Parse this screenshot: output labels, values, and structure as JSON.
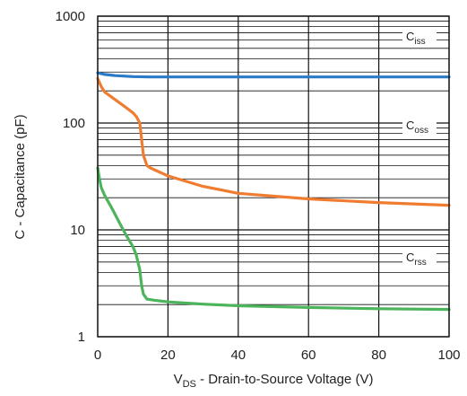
{
  "chart_data": {
    "type": "line",
    "xlabel": {
      "main": "V",
      "sub": "DS",
      "rest": " - Drain-to-Source Voltage (V)"
    },
    "ylabel": "C - Capacitance (pF)",
    "xlim": [
      0,
      100
    ],
    "ylim": [
      1,
      1000
    ],
    "yscale": "log",
    "grid": true,
    "x_ticks": [
      "0",
      "20",
      "40",
      "60",
      "80",
      "100"
    ],
    "y_ticks": [
      "1",
      "10",
      "100",
      "1000"
    ],
    "series": [
      {
        "name": "Ciss",
        "label_main": "C",
        "label_sub": "iss",
        "color": "#2a7ac8",
        "x": [
          0,
          2,
          5,
          10,
          15,
          20,
          40,
          60,
          80,
          100
        ],
        "y": [
          295,
          285,
          278,
          272,
          270,
          270,
          270,
          270,
          270,
          270
        ]
      },
      {
        "name": "Coss",
        "label_main": "C",
        "label_sub": "oss",
        "color": "#f07c31",
        "x": [
          0,
          1,
          2,
          5,
          8,
          10,
          11,
          12,
          12.5,
          13,
          14,
          15,
          20,
          30,
          40,
          60,
          80,
          100
        ],
        "y": [
          260,
          220,
          195,
          165,
          140,
          125,
          115,
          100,
          70,
          50,
          40,
          38,
          32,
          25.5,
          22,
          19.5,
          18,
          17
        ]
      },
      {
        "name": "Crss",
        "label_main": "C",
        "label_sub": "rss",
        "color": "#4cb55b",
        "x": [
          0,
          0.5,
          1,
          2,
          4,
          6,
          8,
          10,
          11,
          12,
          12.5,
          13,
          14,
          16,
          20,
          30,
          40,
          60,
          80,
          100
        ],
        "y": [
          38,
          30,
          25,
          21,
          16,
          12,
          9,
          7,
          5.8,
          4.2,
          3,
          2.5,
          2.25,
          2.2,
          2.12,
          2.02,
          1.95,
          1.88,
          1.83,
          1.8
        ]
      }
    ]
  }
}
